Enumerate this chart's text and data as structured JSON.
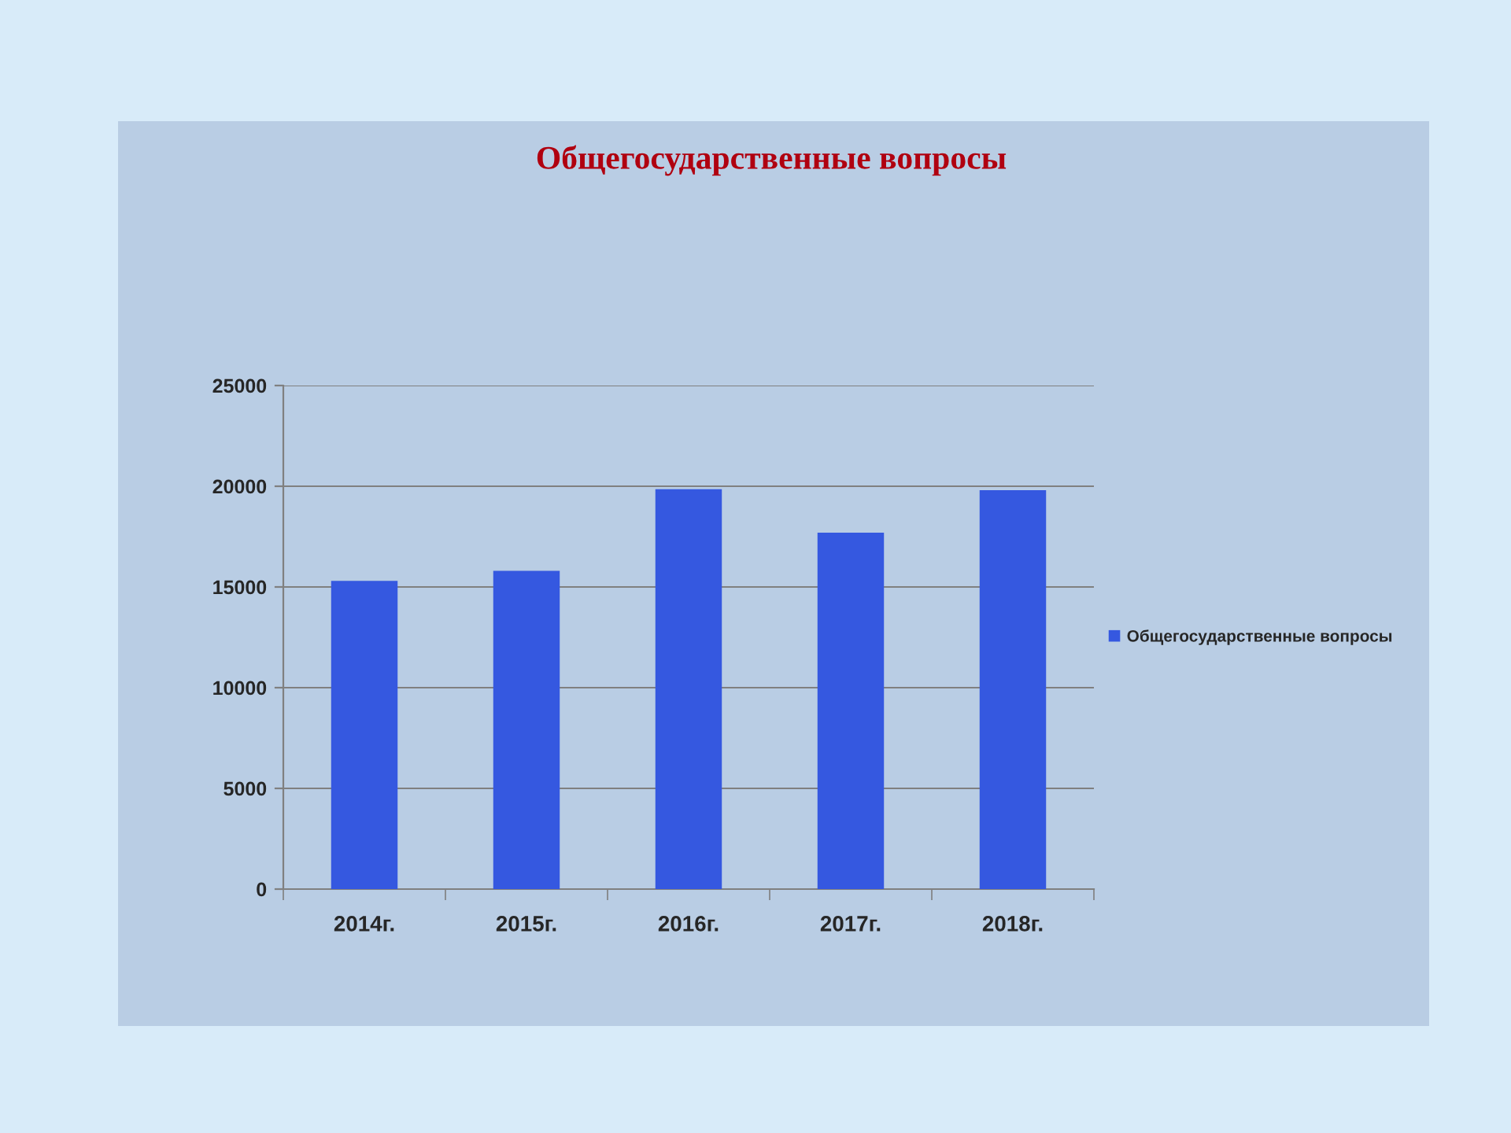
{
  "chart_data": {
    "type": "bar",
    "title": "Общегосударственные вопросы",
    "categories": [
      "2014г.",
      "2015г.",
      "2016г.",
      "2017г.",
      "2018г."
    ],
    "series": [
      {
        "name": "Общегосударственные вопросы",
        "color": "#3558e0",
        "values": [
          15300,
          15800,
          19850,
          17700,
          19800
        ]
      }
    ],
    "ylim": [
      0,
      25000
    ],
    "yticks": [
      0,
      5000,
      10000,
      15000,
      20000,
      25000
    ],
    "grid": "y",
    "legend": "right"
  }
}
